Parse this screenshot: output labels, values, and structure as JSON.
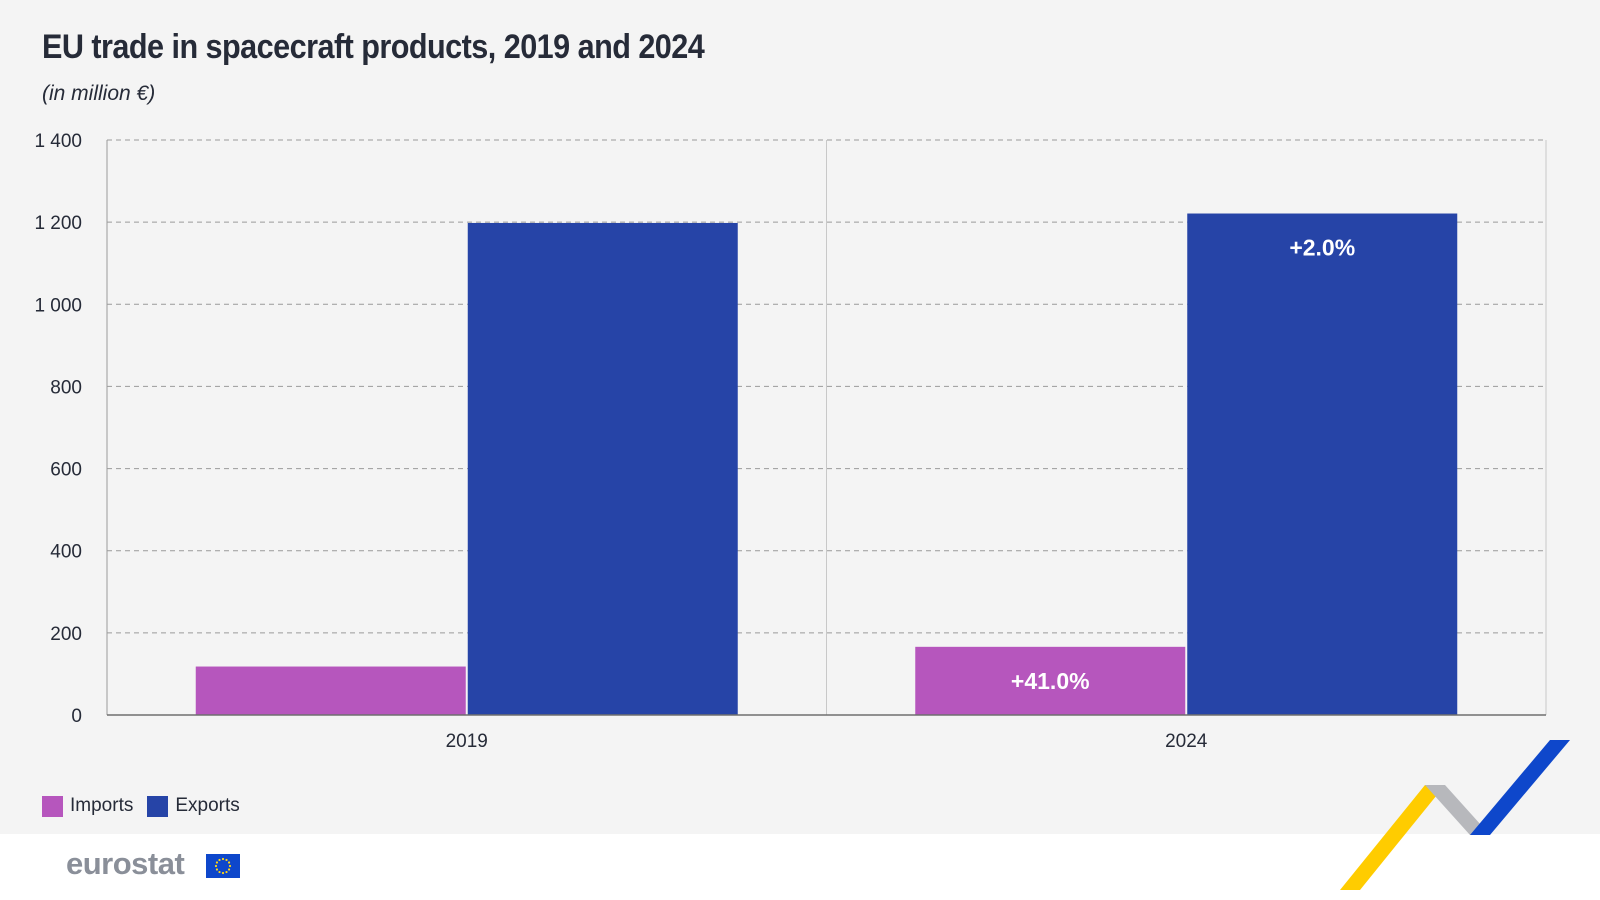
{
  "title": "EU trade in spacecraft products, 2019 and 2024",
  "subtitle": "(in million €)",
  "legend": [
    {
      "label": "Imports",
      "color": "#b656bd"
    },
    {
      "label": "Exports",
      "color": "#2644a7"
    }
  ],
  "logo": "eurostat",
  "chart_data": {
    "type": "bar",
    "categories": [
      "2019",
      "2024"
    ],
    "series": [
      {
        "name": "Imports",
        "color": "#b656bd",
        "values": [
          118,
          166
        ],
        "labels": [
          "",
          "+41.0%"
        ]
      },
      {
        "name": "Exports",
        "color": "#2644a7",
        "values": [
          1198,
          1221
        ],
        "labels": [
          "",
          "+2.0%"
        ]
      }
    ],
    "ylim": [
      0,
      1400
    ],
    "yticks": [
      0,
      200,
      400,
      600,
      800,
      1000,
      1200,
      1400
    ],
    "ytick_labels": [
      "0",
      "200",
      "400",
      "600",
      "800",
      "1 000",
      "1 200",
      "1 400"
    ],
    "grid": true,
    "legend_position": "bottom-left"
  }
}
